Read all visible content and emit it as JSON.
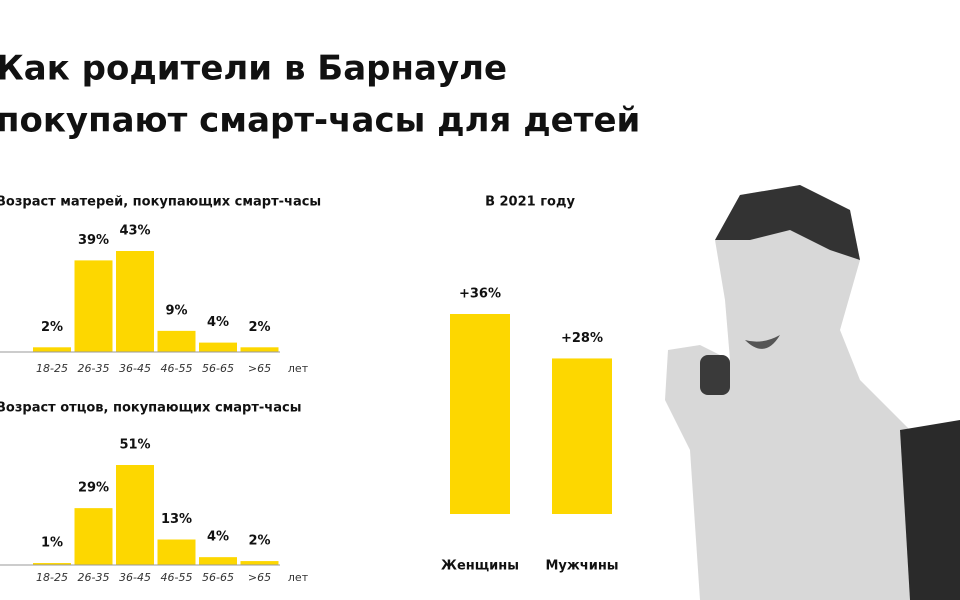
{
  "title_lines": [
    "Как родители в Барнауле",
    "покупают смарт-часы для детей"
  ],
  "chart_data": [
    {
      "type": "bar",
      "title": "Возраст матерей, покупающих смарт-часы",
      "categories": [
        "18-25",
        "26-35",
        "36-45",
        "46-55",
        "56-65",
        ">65"
      ],
      "values": [
        2,
        39,
        43,
        9,
        4,
        2
      ],
      "value_labels": [
        "2%",
        "39%",
        "43%",
        "9%",
        "4%",
        "2%"
      ],
      "x_label": "лет",
      "color": "#fdd700"
    },
    {
      "type": "bar",
      "title": "Возраст отцов, покупающих смарт-часы",
      "categories": [
        "18-25",
        "26-35",
        "36-45",
        "46-55",
        "56-65",
        ">65"
      ],
      "values": [
        1,
        29,
        51,
        13,
        4,
        2
      ],
      "value_labels": [
        "1%",
        "29%",
        "51%",
        "13%",
        "4%",
        "2%"
      ],
      "x_label": "лет",
      "color": "#fdd700"
    },
    {
      "type": "bar",
      "title": "В 2021 году",
      "categories": [
        "Женщины",
        "Мужчины"
      ],
      "values": [
        36,
        28
      ],
      "value_labels": [
        "+36%",
        "+28%"
      ],
      "color": "#fdd700"
    }
  ]
}
